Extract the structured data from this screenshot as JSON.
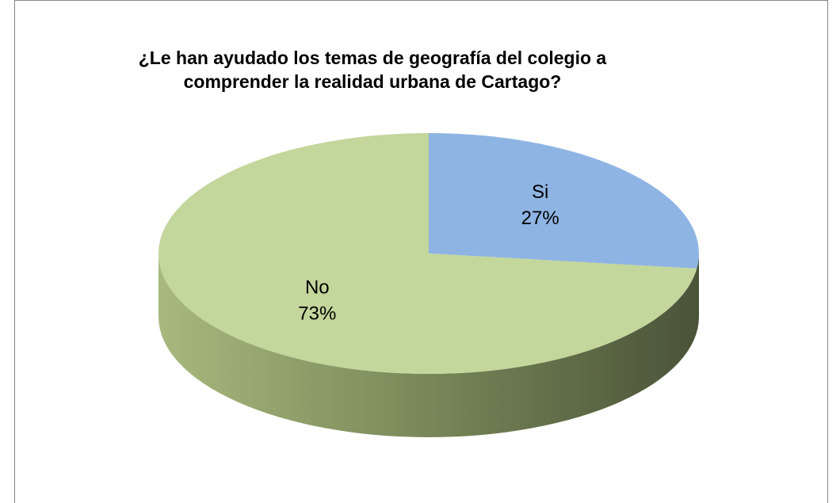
{
  "chart_data": {
    "type": "pie",
    "title": "¿Le han ayudado los temas de geografía del colegio a comprender la realidad urbana de Cartago?",
    "categories": [
      "Si",
      "No"
    ],
    "values": [
      27,
      73
    ],
    "value_labels": [
      "27%",
      "73%"
    ],
    "colors": [
      "#8eb4e3",
      "#c3d69b"
    ]
  }
}
